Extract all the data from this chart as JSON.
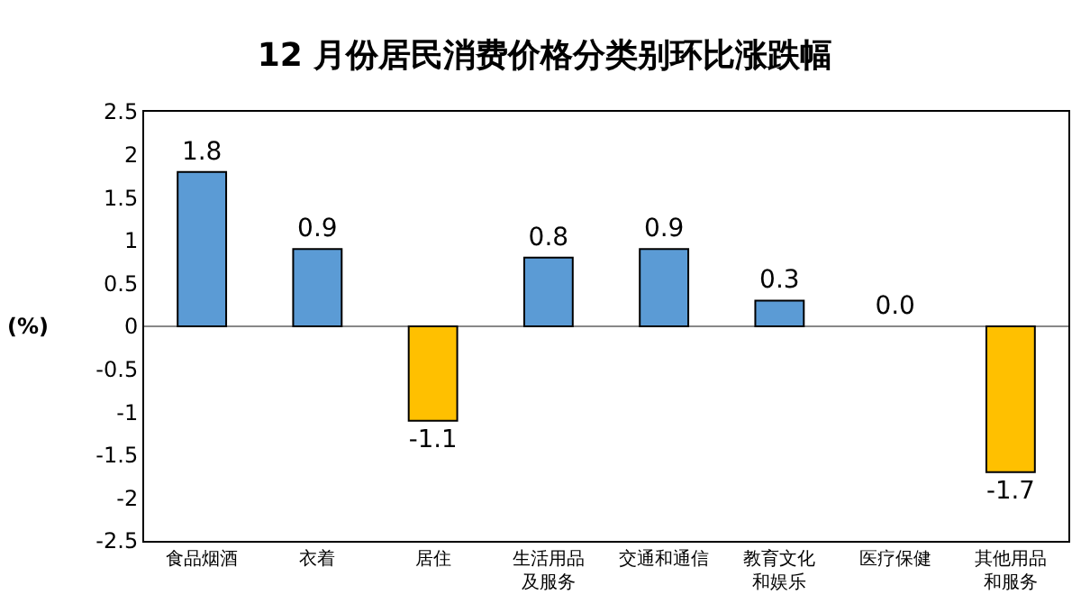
{
  "chart_data": {
    "type": "bar",
    "title": "12 月份居民消费价格分类别环比涨跌幅",
    "ylabel": "(%)",
    "categories": [
      "食品烟酒",
      "衣着",
      "居住",
      "生活用品及服务",
      "交通和通信",
      "教育文化和娱乐",
      "医疗保健",
      "其他用品和服务"
    ],
    "values": [
      1.8,
      0.9,
      -1.1,
      0.8,
      0.9,
      0.3,
      0.0,
      -1.7
    ],
    "colors": [
      "#5b9bd5",
      "#5b9bd5",
      "#ffc000",
      "#5b9bd5",
      "#5b9bd5",
      "#5b9bd5",
      "#5b9bd5",
      "#ffc000"
    ],
    "ylim": [
      -2.5,
      2.5
    ],
    "yticks": [
      {
        "value": -2.5,
        "label": "-2.5"
      },
      {
        "value": -2,
        "label": "-2"
      },
      {
        "value": -1.5,
        "label": "-1.5"
      },
      {
        "value": -1,
        "label": "-1"
      },
      {
        "value": -0.5,
        "label": "-0.5"
      },
      0,
      {
        "value": 0.5,
        "label": "0.5"
      },
      1,
      {
        "value": 1.5,
        "label": "1.5"
      },
      2,
      {
        "value": 2.5,
        "label": "2.5"
      }
    ],
    "value_labels": [
      "1.8",
      "0.9",
      "-1.1",
      "0.8",
      "0.9",
      "0.3",
      "0.0",
      "-1.7"
    ],
    "legend": false
  }
}
